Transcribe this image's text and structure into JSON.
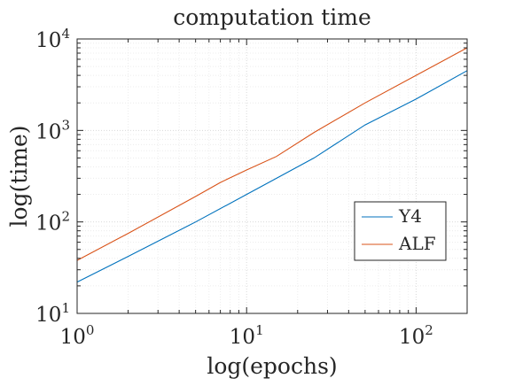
{
  "chart_data": {
    "type": "line",
    "title": "computation time",
    "xlabel": "log(epochs)",
    "ylabel": "log(time)",
    "xscale": "log",
    "yscale": "log",
    "xlim": [
      1,
      200
    ],
    "ylim": [
      10,
      10000
    ],
    "grid": true,
    "minor_grid": true,
    "legend_position": "lower-right",
    "x_ticks": [
      {
        "base": "10",
        "exp": "0",
        "value": 1
      },
      {
        "base": "10",
        "exp": "1",
        "value": 10
      },
      {
        "base": "10",
        "exp": "2",
        "value": 100
      }
    ],
    "y_ticks": [
      {
        "base": "10",
        "exp": "1",
        "value": 10
      },
      {
        "base": "10",
        "exp": "2",
        "value": 100
      },
      {
        "base": "10",
        "exp": "3",
        "value": 1000
      },
      {
        "base": "10",
        "exp": "4",
        "value": 10000
      }
    ],
    "series": [
      {
        "name": "Y4",
        "color": "#0072BD",
        "x": [
          1,
          2,
          5,
          10,
          15,
          25,
          50,
          100,
          200
        ],
        "y": [
          22,
          42,
          100,
          200,
          300,
          500,
          1150,
          2200,
          4500
        ]
      },
      {
        "name": "ALF",
        "color": "#D95319",
        "x": [
          1,
          2,
          5,
          7,
          10,
          15,
          25,
          50,
          100,
          200
        ],
        "y": [
          38,
          75,
          190,
          270,
          370,
          520,
          950,
          2000,
          4000,
          8000
        ]
      }
    ]
  }
}
